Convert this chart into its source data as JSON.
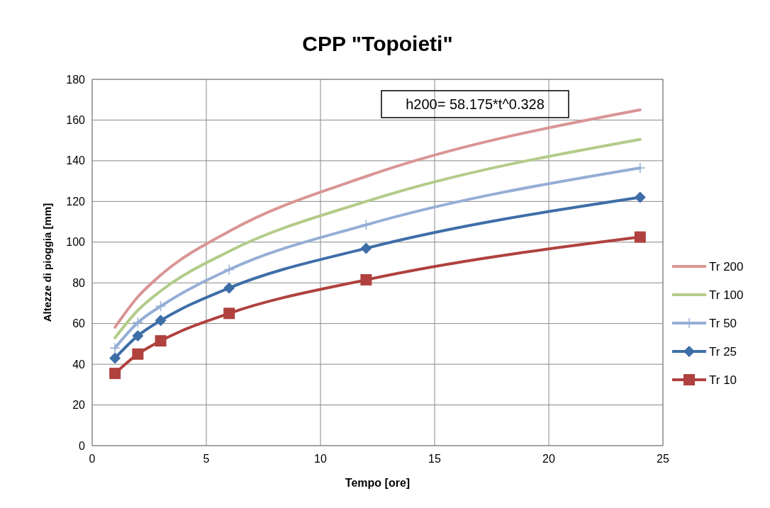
{
  "chart_data": {
    "type": "line",
    "title": "CPP \"Topoieti\"",
    "xlabel": "Tempo [ore]",
    "ylabel": "Altezze di pioggia [mm]",
    "x": [
      1,
      2,
      3,
      6,
      12,
      24
    ],
    "series": [
      {
        "name": "Tr 200",
        "color": "#d99594",
        "marker": "none",
        "values": [
          58.2,
          73.1,
          83.8,
          105.3,
          132.3,
          165
        ]
      },
      {
        "name": "Tr 100",
        "color": "#b3cc8a",
        "marker": "none",
        "values": [
          53,
          66.5,
          76,
          95.5,
          120,
          150.5
        ]
      },
      {
        "name": "Tr 50",
        "color": "#95aed6",
        "marker": "cross",
        "values": [
          48,
          60.5,
          68.5,
          86.5,
          108.5,
          136.5
        ]
      },
      {
        "name": "Tr 25",
        "color": "#3e6ea8",
        "marker": "diamond",
        "values": [
          43,
          54,
          61.5,
          77.5,
          97,
          122
        ]
      },
      {
        "name": "Tr 10",
        "color": "#b0413e",
        "marker": "square",
        "values": [
          35.5,
          45,
          51.5,
          65,
          81.5,
          102.5
        ]
      }
    ],
    "xlim": [
      0,
      25
    ],
    "xticks": [
      0,
      5,
      10,
      15,
      20,
      25
    ],
    "ylim": [
      0,
      180
    ],
    "yticks": [
      0,
      20,
      40,
      60,
      80,
      100,
      120,
      140,
      160,
      180
    ],
    "grid": true,
    "legend": "right",
    "line_style": "solid",
    "annotations": [
      "h200= 58.175*t^0.328"
    ]
  }
}
